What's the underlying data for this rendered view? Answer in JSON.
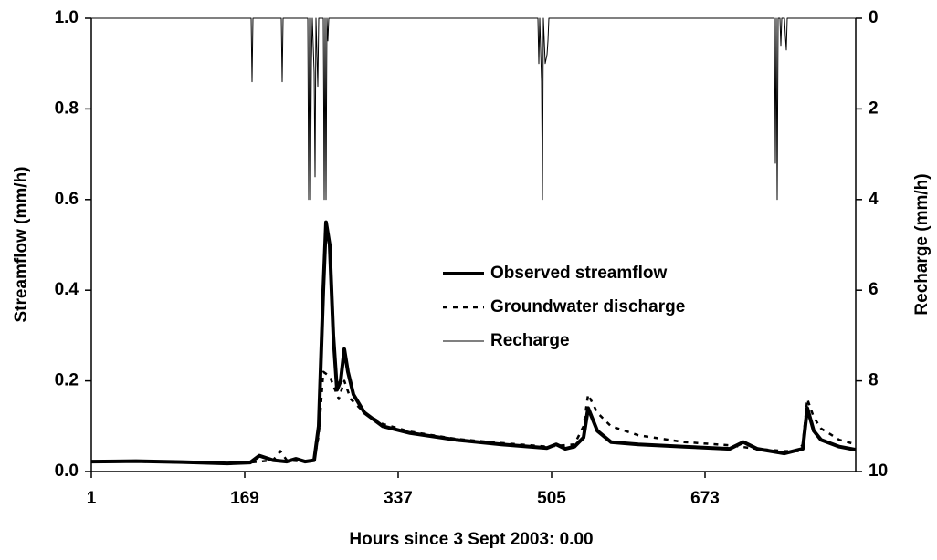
{
  "chart_data": {
    "type": "line",
    "x_label": "Hours since 3 Sept 2003: 0.00",
    "y_label": "Streamflow (mm/h)",
    "y2_label": "Recharge (mm/h)",
    "xlim": [
      1,
      838
    ],
    "xticks": [
      1,
      169,
      337,
      505,
      673
    ],
    "ylim": [
      0,
      1
    ],
    "yticks": [
      {
        "value": 0,
        "label": "0.0"
      },
      {
        "value": 0.2,
        "label": "0.2"
      },
      {
        "value": 0.4,
        "label": "0.4"
      },
      {
        "value": 0.6,
        "label": "0.6"
      },
      {
        "value": 0.8,
        "label": "0.8"
      },
      {
        "value": 1,
        "label": "1.0"
      }
    ],
    "y2lim": [
      10,
      0
    ],
    "y2ticks": [
      0,
      2,
      4,
      6,
      8,
      10
    ],
    "legend": "center-right",
    "series": [
      {
        "name": "Observed streamflow",
        "color": "#000000",
        "line_style": "thick",
        "x": [
          1,
          50,
          100,
          150,
          175,
          185,
          200,
          215,
          225,
          235,
          245,
          250,
          255,
          258,
          262,
          266,
          270,
          274,
          278,
          282,
          288,
          300,
          320,
          350,
          400,
          450,
          500,
          510,
          520,
          530,
          540,
          545,
          555,
          570,
          600,
          650,
          700,
          715,
          730,
          760,
          770,
          780,
          785,
          792,
          800,
          820,
          838
        ],
        "values": [
          0.022,
          0.023,
          0.021,
          0.018,
          0.02,
          0.035,
          0.025,
          0.022,
          0.028,
          0.022,
          0.025,
          0.1,
          0.4,
          0.55,
          0.5,
          0.3,
          0.18,
          0.2,
          0.27,
          0.22,
          0.17,
          0.13,
          0.1,
          0.085,
          0.07,
          0.06,
          0.052,
          0.06,
          0.05,
          0.055,
          0.075,
          0.14,
          0.09,
          0.065,
          0.06,
          0.055,
          0.05,
          0.065,
          0.05,
          0.04,
          0.045,
          0.05,
          0.14,
          0.09,
          0.07,
          0.055,
          0.048
        ]
      },
      {
        "name": "Groundwater discharge",
        "color": "#000000",
        "line_style": "dashed",
        "x": [
          1,
          50,
          100,
          150,
          175,
          200,
          208,
          215,
          235,
          245,
          250,
          255,
          262,
          268,
          272,
          278,
          285,
          300,
          320,
          350,
          400,
          450,
          500,
          530,
          540,
          545,
          555,
          570,
          600,
          650,
          700,
          730,
          760,
          775,
          780,
          785,
          792,
          800,
          820,
          838
        ],
        "values": [
          0.022,
          0.022,
          0.02,
          0.018,
          0.02,
          0.025,
          0.045,
          0.025,
          0.022,
          0.024,
          0.08,
          0.22,
          0.21,
          0.18,
          0.16,
          0.2,
          0.16,
          0.13,
          0.105,
          0.088,
          0.072,
          0.063,
          0.055,
          0.06,
          0.1,
          0.17,
          0.13,
          0.1,
          0.08,
          0.065,
          0.058,
          0.05,
          0.045,
          0.045,
          0.06,
          0.16,
          0.12,
          0.095,
          0.07,
          0.06
        ]
      },
      {
        "name": "Recharge",
        "color": "#000000",
        "line_style": "thin",
        "axis": "y2",
        "x": [
          1,
          176,
          177,
          178,
          209,
          210,
          211,
          238,
          239,
          240,
          241,
          242,
          243,
          245,
          246,
          247,
          249,
          250,
          251,
          255,
          256,
          257,
          258,
          259,
          260,
          261,
          262,
          490,
          491,
          492,
          494,
          495,
          496,
          498,
          500,
          501,
          502,
          749,
          750,
          751,
          752,
          753,
          755,
          756,
          757,
          760,
          761,
          762,
          763,
          838
        ],
        "values": [
          0,
          0,
          1.4,
          0,
          0,
          1.4,
          0,
          0,
          4,
          0,
          4,
          1,
          0,
          1.2,
          3.5,
          0,
          1.5,
          0,
          0,
          0,
          4,
          0,
          4,
          0,
          0.5,
          0,
          0,
          0,
          1,
          0,
          1.4,
          4,
          0,
          1,
          0.8,
          0.5,
          0,
          0,
          3.2,
          0,
          4,
          0,
          0,
          0.6,
          0,
          0,
          0.4,
          0.7,
          0,
          0
        ]
      }
    ]
  }
}
